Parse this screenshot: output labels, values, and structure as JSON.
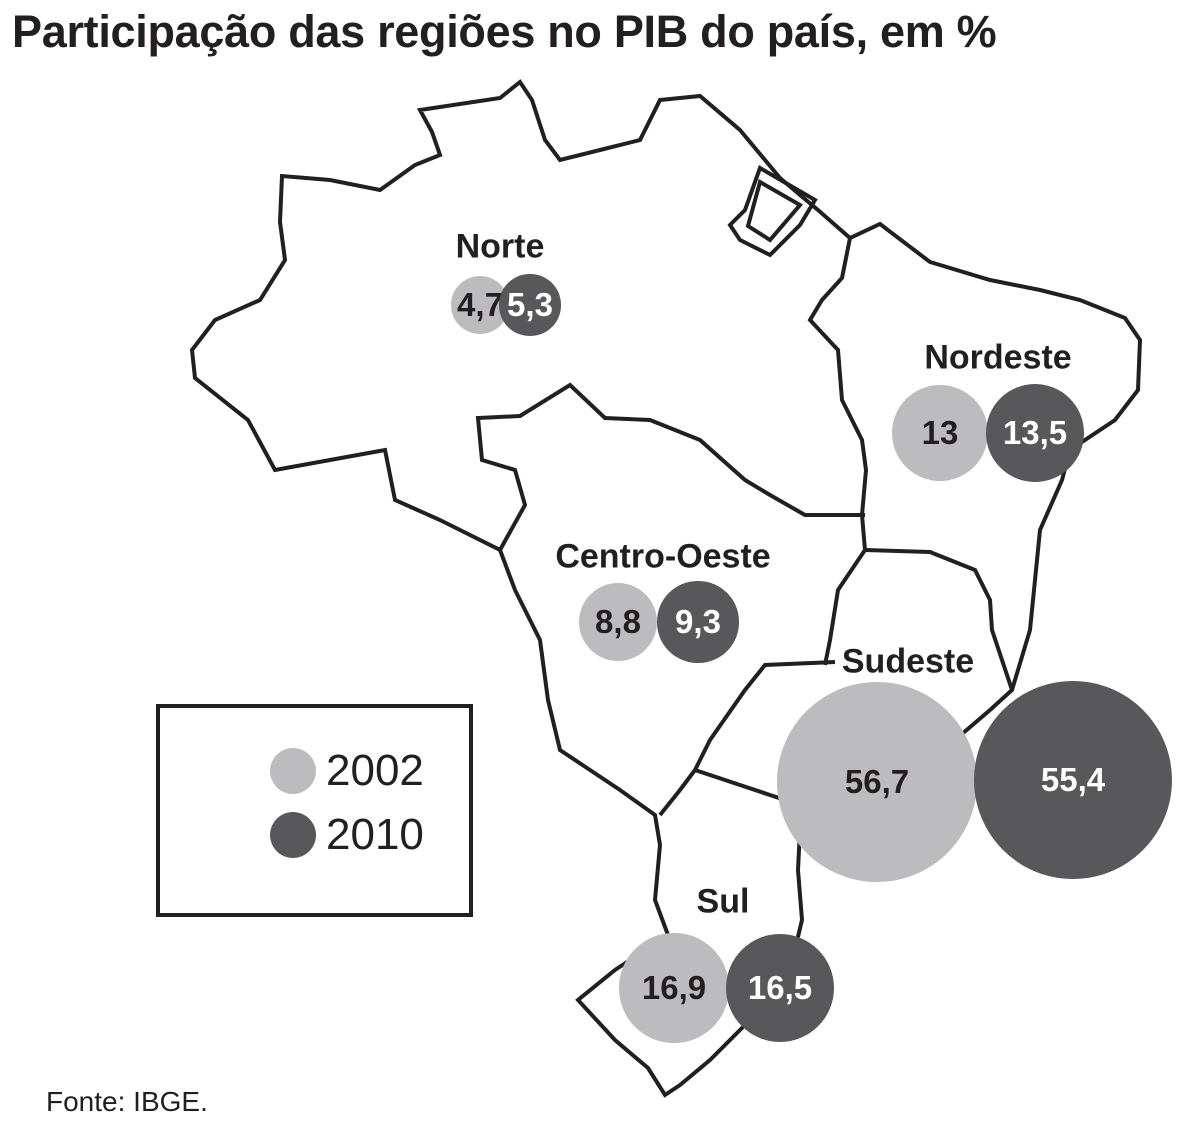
{
  "title": "Participação das regiões no PIB do país, em %",
  "source": "Fonte: IBGE.",
  "colors": {
    "y2002": "#bcbcbe",
    "y2010": "#58585a",
    "outline": "#231f20"
  },
  "legend": [
    {
      "year": "2002",
      "color": "#bcbcbe"
    },
    {
      "year": "2010",
      "color": "#58585a"
    }
  ],
  "chart_data": {
    "type": "bubble-map",
    "title": "Participação das regiões no PIB do país, em %",
    "series": [
      {
        "name": "2002",
        "values": [
          4.7,
          13,
          8.8,
          56.7,
          16.9
        ]
      },
      {
        "name": "2010",
        "values": [
          5.3,
          13.5,
          9.3,
          55.4,
          16.5
        ]
      }
    ],
    "regions": [
      {
        "name": "Norte",
        "v2002": "4,7",
        "v2010": "5,3"
      },
      {
        "name": "Nordeste",
        "v2002": "13",
        "v2010": "13,5"
      },
      {
        "name": "Centro-Oeste",
        "v2002": "8,8",
        "v2010": "9,3"
      },
      {
        "name": "Sudeste",
        "v2002": "56,7",
        "v2010": "55,4"
      },
      {
        "name": "Sul",
        "v2002": "16,9",
        "v2010": "16,5"
      }
    ]
  }
}
